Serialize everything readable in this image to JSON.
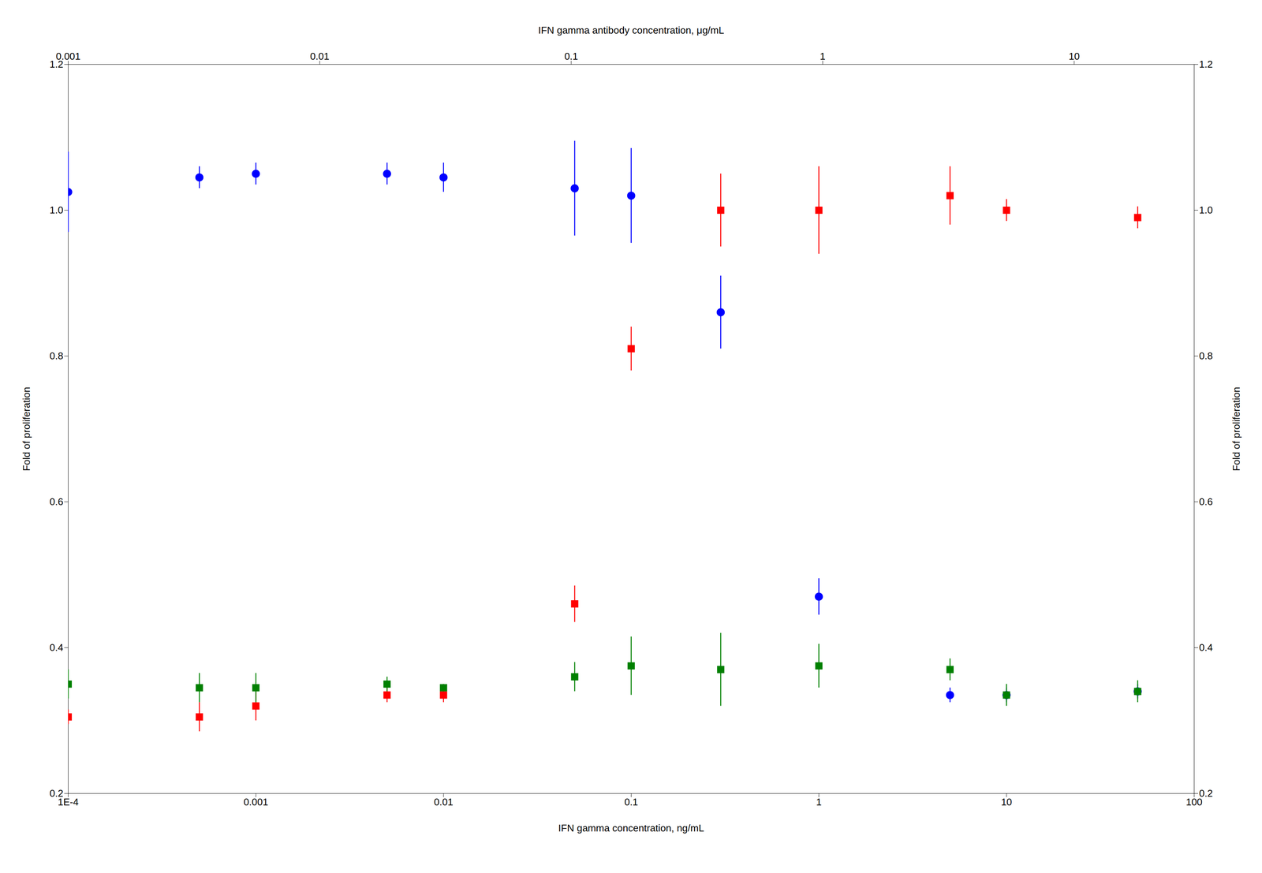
{
  "chart_data": {
    "type": "scatter",
    "log": "x",
    "grid": false,
    "xlabel": "IFN gamma concentration, ng/mL",
    "x2label": "IFN gamma antibody concentration, μg/mL",
    "ylabel": "Fold of proliferation",
    "y2label": "Fold of proliferation",
    "xlim": [
      0.0001,
      100
    ],
    "xticks": [
      {
        "value": 0.0001,
        "label": "1E-4"
      },
      0.001,
      0.01,
      0.1,
      1,
      10,
      100
    ],
    "x2lim": [
      0.001,
      30
    ],
    "x2ticks": [
      0.001,
      0.01,
      0.1,
      1,
      10
    ],
    "ylim": [
      0.2,
      1.2
    ],
    "yticks": [
      0.2,
      0.4,
      0.6,
      0.8,
      {
        "value": 1.0,
        "label": "1.0"
      },
      1.2
    ],
    "y2lim": [
      0.2,
      1.2
    ],
    "y2ticks": [
      0.2,
      0.4,
      0.6,
      0.8,
      {
        "value": 1.0,
        "label": "1.0"
      },
      1.2
    ],
    "series": [
      {
        "color": "#0000FF",
        "marker": "circle",
        "x": [
          0.0001,
          0.0005,
          0.001,
          0.005,
          0.01,
          0.05,
          0.1,
          0.3,
          1.0,
          5.0,
          10,
          50
        ],
        "values": [
          1.025,
          1.045,
          1.05,
          1.05,
          1.045,
          1.03,
          1.02,
          0.86,
          0.47,
          0.335,
          0.335,
          0.34
        ],
        "errors": [
          0.055,
          0.015,
          0.015,
          0.015,
          0.02,
          0.065,
          0.065,
          0.05,
          0.025,
          0.01,
          0.01,
          0.01
        ]
      },
      {
        "color": "#FF0000",
        "marker": "square",
        "x": [
          0.0001,
          0.0005,
          0.001,
          0.005,
          0.01,
          0.05,
          0.1,
          0.3,
          1.0,
          5.0,
          10,
          50
        ],
        "values": [
          0.305,
          0.305,
          0.32,
          0.335,
          0.335,
          0.46,
          0.81,
          1.0,
          1.0,
          1.02,
          1.0,
          0.99
        ],
        "errors": [
          0.01,
          0.02,
          0.02,
          0.01,
          0.01,
          0.025,
          0.03,
          0.05,
          0.06,
          0.04,
          0.015,
          0.015
        ]
      },
      {
        "color": "#008000",
        "marker": "square",
        "x": [
          0.0001,
          0.0005,
          0.001,
          0.005,
          0.01,
          0.05,
          0.1,
          0.3,
          1.0,
          5.0,
          10,
          50
        ],
        "values": [
          0.35,
          0.345,
          0.345,
          0.35,
          0.345,
          0.36,
          0.375,
          0.37,
          0.375,
          0.37,
          0.335,
          0.34
        ],
        "errors": [
          0.02,
          0.02,
          0.02,
          0.01,
          0.005,
          0.02,
          0.04,
          0.05,
          0.03,
          0.015,
          0.015,
          0.015
        ]
      }
    ]
  }
}
